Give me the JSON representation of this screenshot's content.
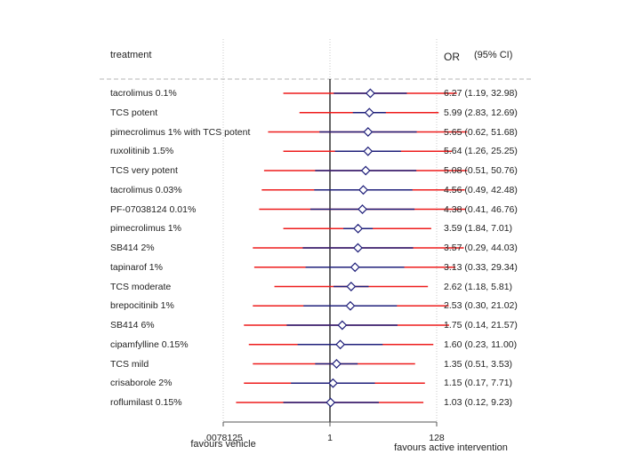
{
  "chart_data": {
    "type": "forest",
    "column_headers": {
      "treatment": "treatment",
      "or": "OR",
      "ci": "(95% CI)"
    },
    "x_scale": "log2",
    "xlim": [
      0.0078125,
      128
    ],
    "reference_line": 1,
    "x_ticks": [
      {
        "value": 0.0078125,
        "label": ".0078125"
      },
      {
        "value": 1,
        "label": "1"
      },
      {
        "value": 128,
        "label": "128"
      }
    ],
    "xlabel_left": "favours vehicle",
    "xlabel_right": "favours active intervention",
    "rows": [
      {
        "treatment": "tacrolimus 0.1%",
        "or": 6.27,
        "lo": 1.19,
        "hi": 32.98,
        "pi_lo": 0.12,
        "pi_hi": 320,
        "label": "6.27 (1.19, 32.98)"
      },
      {
        "treatment": "TCS potent",
        "or": 5.99,
        "lo": 2.83,
        "hi": 12.69,
        "pi_lo": 0.25,
        "pi_hi": 140,
        "label": "5.99 (2.83, 12.69)"
      },
      {
        "treatment": "pimecrolimus 1% with TCS potent",
        "or": 5.65,
        "lo": 0.62,
        "hi": 51.68,
        "pi_lo": 0.06,
        "pi_hi": 512,
        "label": "5.65 (0.62, 51.68)"
      },
      {
        "treatment": "ruxolitinib 1.5%",
        "or": 5.64,
        "lo": 1.26,
        "hi": 25.25,
        "pi_lo": 0.12,
        "pi_hi": 256,
        "label": "5.64 (1.26, 25.25)"
      },
      {
        "treatment": "TCS very potent",
        "or": 5.08,
        "lo": 0.51,
        "hi": 50.76,
        "pi_lo": 0.05,
        "pi_hi": 512,
        "label": "5.08 (0.51, 50.76)"
      },
      {
        "treatment": "tacrolimus 0.03%",
        "or": 4.56,
        "lo": 0.49,
        "hi": 42.48,
        "pi_lo": 0.045,
        "pi_hi": 460,
        "label": "4.56 (0.49, 42.48)"
      },
      {
        "treatment": "PF-07038124 0.01%",
        "or": 4.38,
        "lo": 0.41,
        "hi": 46.76,
        "pi_lo": 0.04,
        "pi_hi": 480,
        "label": "4.38 (0.41, 46.76)"
      },
      {
        "treatment": "pimecrolimus 1%",
        "or": 3.59,
        "lo": 1.84,
        "hi": 7.01,
        "pi_lo": 0.12,
        "pi_hi": 100,
        "label": "3.59 (1.84, 7.01)"
      },
      {
        "treatment": "SB414 2%",
        "or": 3.57,
        "lo": 0.29,
        "hi": 44.03,
        "pi_lo": 0.03,
        "pi_hi": 440,
        "label": "3.57 (0.29, 44.03)"
      },
      {
        "treatment": "tapinarof 1%",
        "or": 3.13,
        "lo": 0.33,
        "hi": 29.34,
        "pi_lo": 0.032,
        "pi_hi": 300,
        "label": "3.13 (0.33, 29.34)"
      },
      {
        "treatment": "TCS moderate",
        "or": 2.62,
        "lo": 1.18,
        "hi": 5.81,
        "pi_lo": 0.08,
        "pi_hi": 86,
        "label": "2.62 (1.18, 5.81)"
      },
      {
        "treatment": "brepocitinib 1%",
        "or": 2.53,
        "lo": 0.3,
        "hi": 21.02,
        "pi_lo": 0.03,
        "pi_hi": 220,
        "label": "2.53 (0.30, 21.02)"
      },
      {
        "treatment": "SB414 6%",
        "or": 1.75,
        "lo": 0.14,
        "hi": 21.57,
        "pi_lo": 0.02,
        "pi_hi": 225,
        "label": "1.75 (0.14, 21.57)"
      },
      {
        "treatment": "cipamfylline 0.15%",
        "or": 1.6,
        "lo": 0.23,
        "hi": 11.0,
        "pi_lo": 0.025,
        "pi_hi": 110,
        "label": "1.60 (0.23, 11.00)"
      },
      {
        "treatment": "TCS mild",
        "or": 1.35,
        "lo": 0.51,
        "hi": 3.53,
        "pi_lo": 0.03,
        "pi_hi": 48,
        "label": "1.35 (0.51, 3.53)"
      },
      {
        "treatment": "crisaborole 2%",
        "or": 1.15,
        "lo": 0.17,
        "hi": 7.71,
        "pi_lo": 0.02,
        "pi_hi": 75,
        "label": "1.15 (0.17, 7.71)"
      },
      {
        "treatment": "roflumilast 0.15%",
        "or": 1.03,
        "lo": 0.12,
        "hi": 9.23,
        "pi_lo": 0.014,
        "pi_hi": 70,
        "label": "1.03 (0.12, 9.23)"
      }
    ],
    "colors": {
      "ci": "#1f1f7a",
      "prediction": "#ee1c1c",
      "marker": "#1f1f7a",
      "reference": "#000000",
      "grid": "#c8c8c8",
      "axis": "#555555"
    }
  }
}
